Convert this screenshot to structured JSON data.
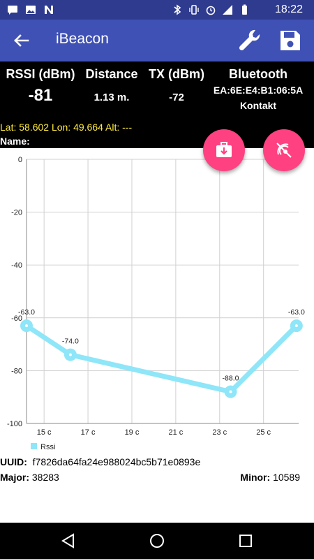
{
  "status_bar": {
    "time": "18:22",
    "icons_left": [
      "message-icon",
      "image-icon",
      "notification-n-icon"
    ],
    "icons_right": [
      "bluetooth-icon",
      "vibrate-icon",
      "alarm-icon",
      "signal-icon",
      "battery-icon"
    ]
  },
  "toolbar": {
    "title": "iBeacon",
    "back_icon": "arrow-back-icon",
    "settings_icon": "wrench-icon",
    "save_icon": "save-icon"
  },
  "info": {
    "rssi_label": "RSSI (dBm)",
    "rssi_value": "-81",
    "distance_label": "Distance",
    "distance_value": "1.13 m.",
    "tx_label": "TX (dBm)",
    "tx_value": "-72",
    "bluetooth_label": "Bluetooth",
    "bluetooth_mac": "EA:6E:E4:B1:06:5A",
    "bluetooth_vendor": "Kontakt",
    "latlon": "Lat: 58.602 Lon: 49.664 Alt: ---",
    "name_label": "Name:"
  },
  "fabs": {
    "export_icon": "briefcase-download-icon",
    "scan_off_icon": "scan-off-icon"
  },
  "colors": {
    "toolbar": "#3f51b5",
    "status_bar": "#2f3b8f",
    "accent": "#ff4081",
    "series": "#8ee6f8",
    "latlon": "#ffeb3b"
  },
  "chart_data": {
    "type": "line",
    "x_ticks": [
      "15 c",
      "17 c",
      "19 c",
      "21 c",
      "23 c",
      "25 c"
    ],
    "x_tick_values": [
      15,
      17,
      19,
      21,
      23,
      25
    ],
    "xlim": [
      14.2,
      26.6
    ],
    "y_ticks": [
      "0",
      "-20",
      "-40",
      "-60",
      "-80",
      "-100"
    ],
    "y_tick_values": [
      0,
      -20,
      -40,
      -60,
      -80,
      -100
    ],
    "ylim": [
      -100,
      0
    ],
    "grid": true,
    "legend_position": "bottom-left",
    "series": [
      {
        "name": "Rssi",
        "x": [
          14.2,
          16.2,
          23.5,
          26.5
        ],
        "values": [
          -63.0,
          -74.0,
          -88.0,
          -63.0
        ],
        "labels": [
          "-63.0",
          "-74.0",
          "-88.0",
          "-63.0"
        ]
      }
    ]
  },
  "details": {
    "uuid_label": "UUID:",
    "uuid_value": "f7826da64fa24e988024bc5b71e0893e",
    "major_label": "Major:",
    "major_value": "38283",
    "minor_label": "Minor:",
    "minor_value": "10589"
  },
  "nav": {
    "back_icon": "nav-back-icon",
    "home_icon": "nav-home-icon",
    "recent_icon": "nav-recent-icon"
  }
}
